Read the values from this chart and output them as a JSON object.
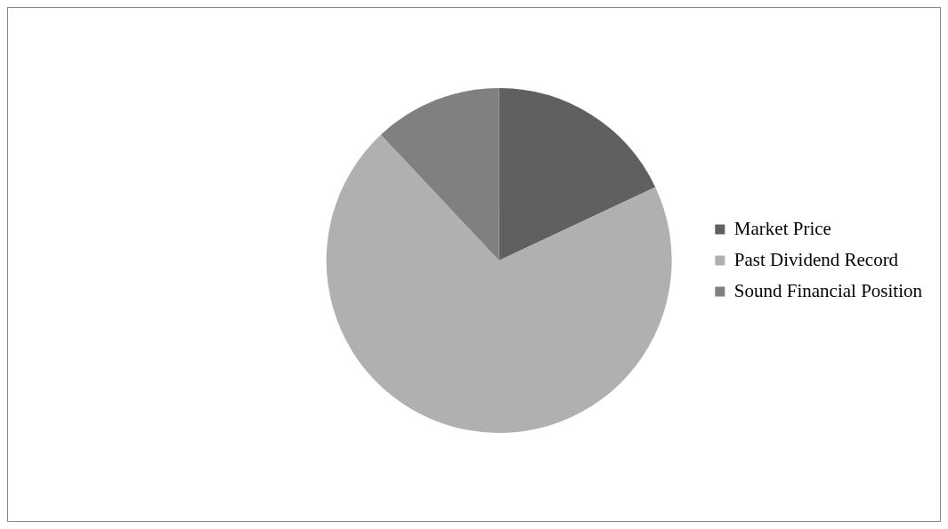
{
  "chart_data": {
    "type": "pie",
    "categories": [
      "Market Price",
      "Past Dividend Record",
      "Sound Financial Position"
    ],
    "values": [
      18,
      70,
      12
    ],
    "colors": [
      "#606060",
      "#b0b0b0",
      "#808080"
    ],
    "legend": "right"
  }
}
